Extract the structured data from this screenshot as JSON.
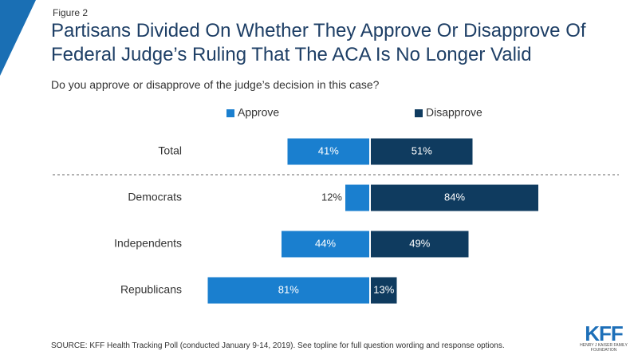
{
  "header": {
    "figure_label": "Figure 2",
    "title": "Partisans Divided On Whether They Approve Or Disapprove Of Federal Judge’s Ruling That The ACA Is No Longer Valid",
    "subtitle": "Do you approve or disapprove of the judge’s decision in this case?"
  },
  "footer": {
    "source": "SOURCE: KFF Health Tracking Poll (conducted January 9-14, 2019). See topline for full question wording and response options."
  },
  "logo": {
    "text": "KFF",
    "subtext": "HENRY J KAISER FAMILY FOUNDATION"
  },
  "colors": {
    "approve": "#1a7fcf",
    "disapprove": "#0f3b5f",
    "corner": "#1a6fb4",
    "title": "#1e3f66"
  },
  "chart_data": {
    "type": "bar",
    "orientation": "horizontal-diverging",
    "categories": [
      "Total",
      "Democrats",
      "Independents",
      "Republicans"
    ],
    "series": [
      {
        "name": "Approve",
        "values": [
          41,
          12,
          44,
          81
        ]
      },
      {
        "name": "Disapprove",
        "values": [
          51,
          84,
          49,
          13
        ]
      }
    ],
    "value_suffix": "%",
    "legend_position": "top",
    "separator_after_category": "Total"
  }
}
